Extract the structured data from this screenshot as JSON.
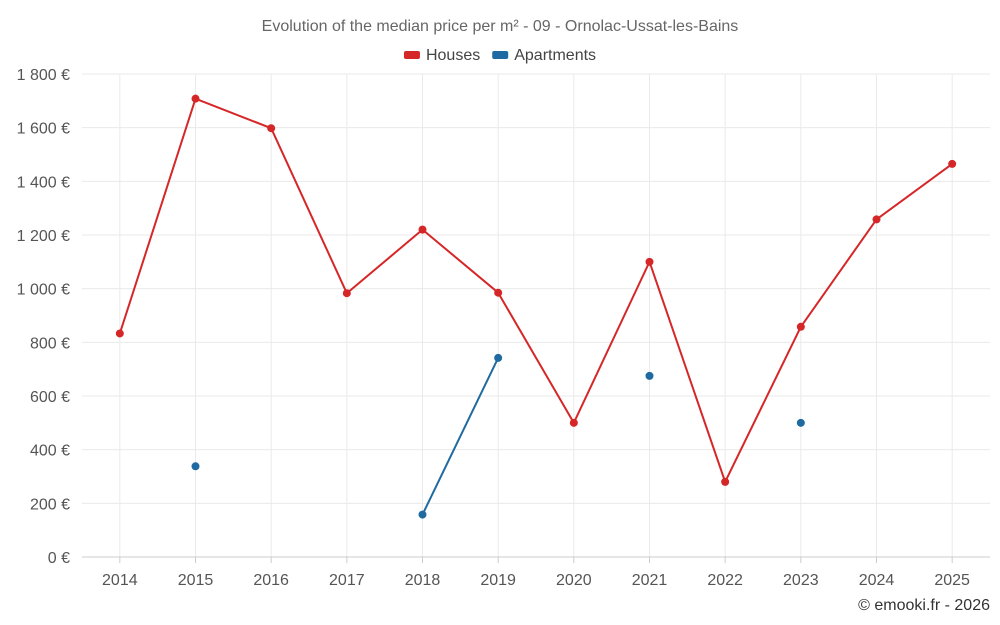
{
  "chart_data": {
    "type": "line",
    "title": "Evolution of the median price per m² - 09 - Ornolac-Ussat-les-Bains",
    "categories": [
      "2014",
      "2015",
      "2016",
      "2017",
      "2018",
      "2019",
      "2020",
      "2021",
      "2022",
      "2023",
      "2024",
      "2025"
    ],
    "y_ticks": [
      "0 €",
      "200 €",
      "400 €",
      "600 €",
      "800 €",
      "1 000 €",
      "1 200 €",
      "1 400 €",
      "1 600 €",
      "1 800 €"
    ],
    "ylim": [
      0,
      1800
    ],
    "grid": true,
    "legend_position": "top-center",
    "series": [
      {
        "name": "Houses",
        "color": "#d62728",
        "values": [
          833,
          1708,
          1598,
          983,
          1220,
          985,
          500,
          1100,
          280,
          858,
          1258,
          1465
        ]
      },
      {
        "name": "Apartments",
        "color": "#1f6aa0",
        "values": [
          null,
          338,
          null,
          null,
          158,
          742,
          null,
          675,
          null,
          500,
          null,
          null
        ]
      }
    ]
  },
  "credit": "© emooki.fr - 2026"
}
